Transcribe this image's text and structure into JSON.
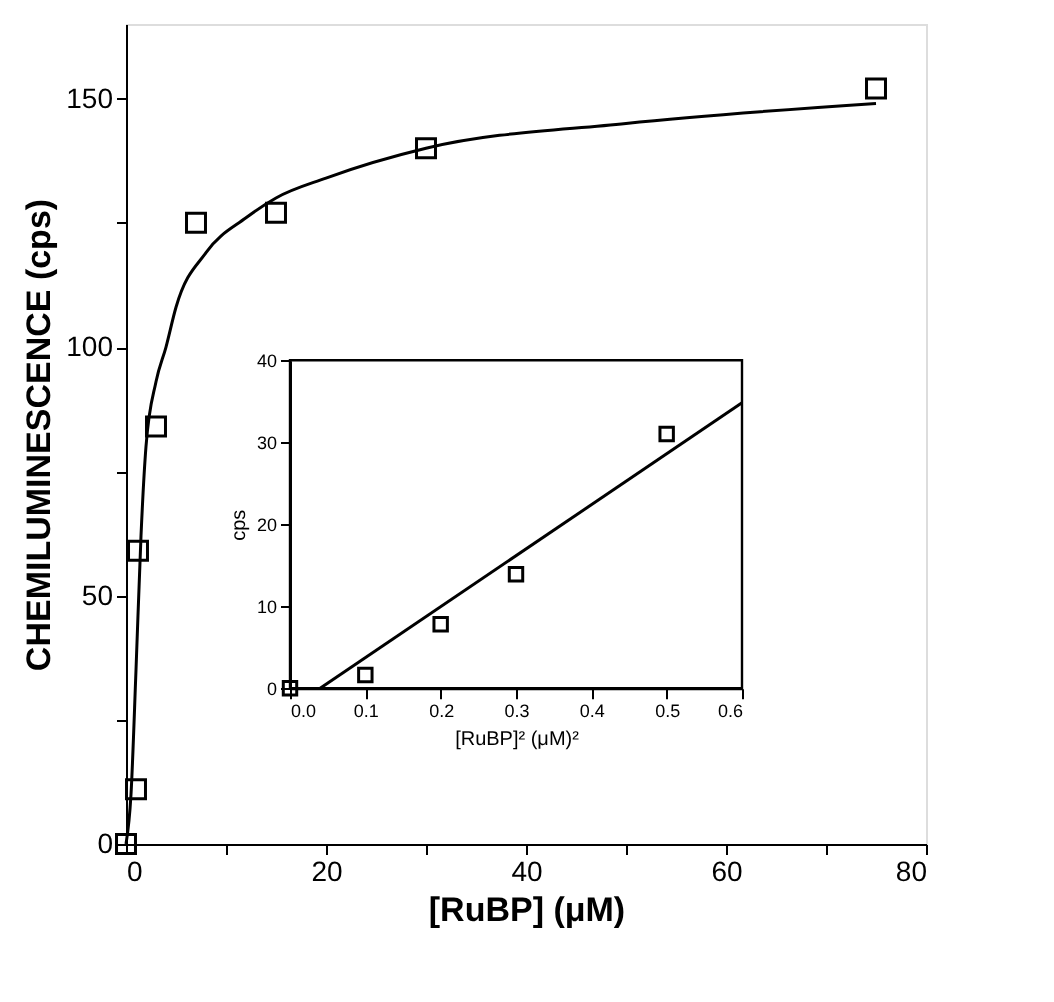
{
  "chart_data": [
    {
      "type": "scatter",
      "xlabel": "[RuBP] (μM)",
      "ylabel": "CHEMILUMINESCENCE (cps)",
      "xlim": [
        0,
        80
      ],
      "ylim": [
        0,
        165
      ],
      "xticks": [
        0,
        {
          "value": 10,
          "label": null
        },
        20,
        {
          "value": 30,
          "label": null
        },
        40,
        {
          "value": 50,
          "label": null
        },
        60,
        {
          "value": 70,
          "label": null
        },
        80
      ],
      "yticks": [
        0,
        {
          "value": 25,
          "label": null
        },
        50,
        {
          "value": 75,
          "label": null
        },
        100,
        {
          "value": 125,
          "label": null
        },
        150
      ],
      "grid": false,
      "series": [
        {
          "color": "#000000",
          "marker": "square",
          "x": [
            0,
            1,
            1.2,
            3,
            7,
            15,
            30,
            75
          ],
          "values": [
            0,
            11,
            59,
            84,
            125,
            127,
            140,
            152
          ]
        },
        {
          "type": "line",
          "color": "#000000",
          "x": [
            0,
            0.5,
            1,
            1.5,
            2,
            3,
            4,
            5,
            8,
            12,
            15,
            20,
            30,
            50,
            75
          ],
          "values": [
            0,
            10,
            35,
            62,
            80,
            93,
            100,
            108,
            119,
            126,
            130,
            134,
            140,
            145,
            149
          ]
        }
      ]
    },
    {
      "type": "scatter",
      "xlabel": "[RuBP]² (μM)²",
      "ylabel": "cps",
      "xlim": [
        0,
        0.6
      ],
      "ylim": [
        0,
        40
      ],
      "xticks": [
        {
          "value": 0,
          "label": "0.0"
        },
        0.1,
        0.2,
        0.3,
        0.4,
        0.5,
        0.6
      ],
      "yticks": [
        0,
        10,
        20,
        30,
        40
      ],
      "grid": false,
      "series": [
        {
          "color": "#000000",
          "marker": "square",
          "x": [
            0,
            0.1,
            0.2,
            0.3,
            0.5
          ],
          "values": [
            0,
            1.6,
            7.8,
            13.9,
            31
          ]
        },
        {
          "type": "line",
          "color": "#000000",
          "x": [
            0.04,
            0.6
          ],
          "values": [
            0,
            34.8
          ]
        }
      ]
    }
  ]
}
